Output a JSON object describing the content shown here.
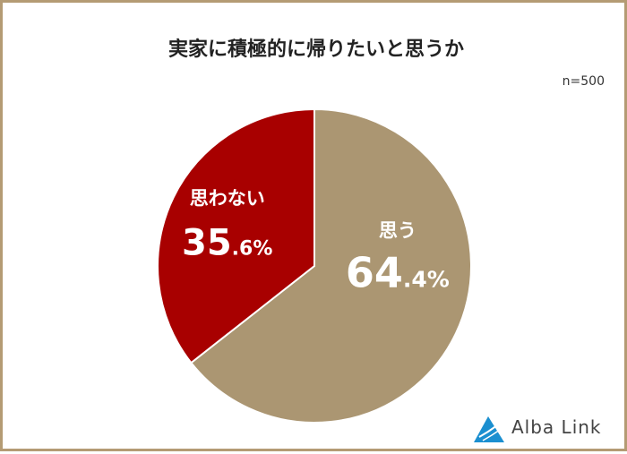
{
  "chart_data": {
    "type": "pie",
    "title": "実家に積極的に帰りたいと思うか",
    "note": "n=500",
    "slices": [
      {
        "label": "思う",
        "value": 64.4,
        "value_main": "64",
        "value_decimal": ".4%",
        "color": "#ab9672"
      },
      {
        "label": "思わない",
        "value": 35.6,
        "value_main": "35",
        "value_decimal": ".6%",
        "color": "#a80000"
      }
    ]
  },
  "logo": {
    "text": "Alba Link",
    "color": "#1b8fd0"
  }
}
